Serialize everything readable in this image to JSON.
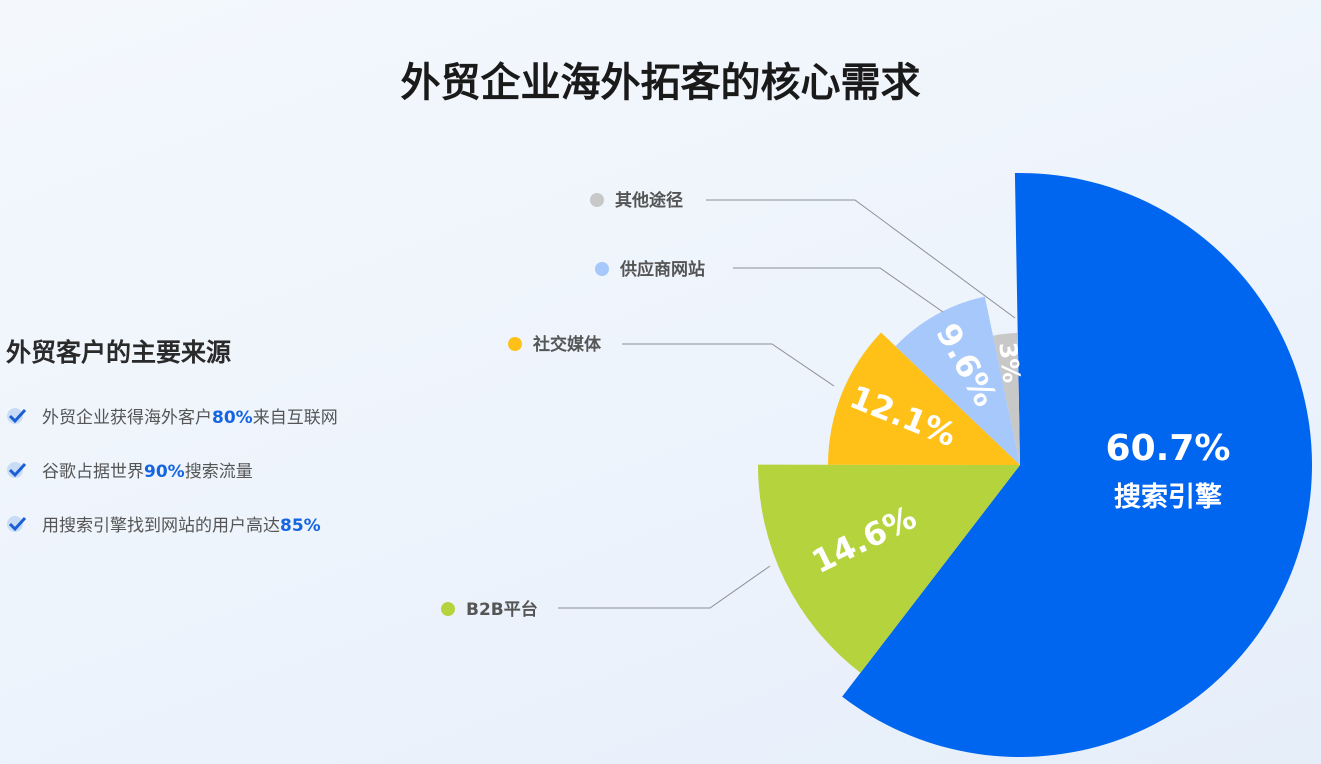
{
  "title": "外贸企业海外拓客的核心需求",
  "side": {
    "title": "外贸客户的主要来源",
    "bullets": [
      {
        "pre": "外贸企业获得海外客户",
        "hl": "80%",
        "post": "来自互联网",
        "icon": "check-icon"
      },
      {
        "pre": "谷歌占据世界",
        "hl": "90%",
        "post": "搜索流量",
        "icon": "check-icon"
      },
      {
        "pre": "用搜索引擎找到网站的用户高达",
        "hl": "85%",
        "post": "",
        "icon": "check-icon"
      }
    ]
  },
  "chart_data": {
    "type": "pie",
    "variant": "rose (radius varies by slice)",
    "title": "外贸企业海外拓客的核心需求",
    "slices": [
      {
        "name": "搜索引擎",
        "value": 60.7,
        "label": "60.7%",
        "color": "#0066F0"
      },
      {
        "name": "B2B平台",
        "value": 14.6,
        "label": "14.6%",
        "color": "#B5D33D"
      },
      {
        "name": "社交媒体",
        "value": 12.1,
        "label": "12.1%",
        "color": "#FFC117"
      },
      {
        "name": "供应商网站",
        "value": 9.6,
        "label": "9.6%",
        "color": "#A6C8FA"
      },
      {
        "name": "其他途径",
        "value": 3,
        "label": "3%",
        "color": "#C8C8C8"
      }
    ]
  }
}
